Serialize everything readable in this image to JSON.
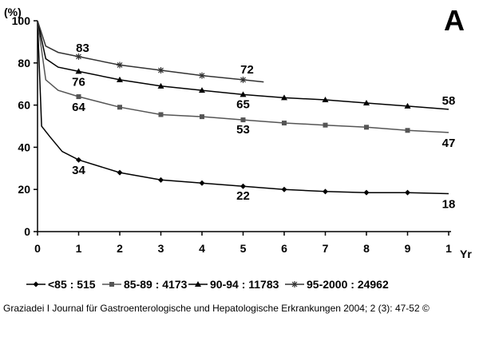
{
  "chart_data": {
    "type": "line",
    "panel_label": "A",
    "y_unit_label": "(%)",
    "x_unit_label": "Yr",
    "ylim": [
      0,
      100
    ],
    "yticks": [
      0,
      20,
      40,
      60,
      80,
      100
    ],
    "x_tick_labels": [
      "0",
      "1",
      "2",
      "3",
      "4",
      "5",
      "6",
      "7",
      "8",
      "9",
      "1"
    ],
    "grid": false,
    "legend_position": "bottom",
    "series": [
      {
        "name": "<85 : 515",
        "color": "#000000",
        "marker": "diamond",
        "x": [
          0,
          0.1,
          0.3,
          0.6,
          1,
          2,
          3,
          4,
          5,
          6,
          7,
          8,
          9,
          10
        ],
        "y": [
          100,
          50,
          45,
          38,
          34,
          28,
          24.5,
          23,
          21.5,
          20,
          19,
          18.5,
          18.5,
          18
        ],
        "data_labels": [
          {
            "x": 1,
            "y": 34,
            "text": "34"
          },
          {
            "x": 5,
            "y": 22,
            "text": "22"
          },
          {
            "x": 10,
            "y": 18,
            "text": "18"
          }
        ]
      },
      {
        "name": "85-89 : 4173",
        "color": "#555555",
        "marker": "square",
        "x": [
          0,
          0.2,
          0.5,
          1,
          2,
          3,
          4,
          5,
          6,
          7,
          8,
          9,
          10
        ],
        "y": [
          100,
          72,
          67,
          64,
          59,
          55.5,
          54.5,
          53,
          51.5,
          50.5,
          49.5,
          48,
          47
        ],
        "data_labels": [
          {
            "x": 1,
            "y": 64,
            "text": "64"
          },
          {
            "x": 5,
            "y": 53,
            "text": "53"
          },
          {
            "x": 10,
            "y": 47,
            "text": "47"
          }
        ]
      },
      {
        "name": "90-94 : 11783",
        "color": "#000000",
        "marker": "triangle",
        "x": [
          0,
          0.2,
          0.5,
          1,
          2,
          3,
          4,
          5,
          6,
          7,
          8,
          9,
          10
        ],
        "y": [
          100,
          82,
          78,
          76,
          72,
          69,
          67,
          65,
          63.5,
          62.5,
          61,
          59.5,
          58
        ],
        "data_labels": [
          {
            "x": 1,
            "y": 76,
            "text": "76"
          },
          {
            "x": 5,
            "y": 65,
            "text": "65"
          },
          {
            "x": 10,
            "y": 58,
            "text": "58"
          }
        ]
      },
      {
        "name": "95-2000 : 24962",
        "color": "#333333",
        "marker": "star",
        "x": [
          0,
          0.2,
          0.5,
          1,
          2,
          3,
          4,
          5,
          5.5
        ],
        "y": [
          100,
          88,
          85,
          83,
          79,
          76.5,
          74,
          72,
          71
        ],
        "data_labels": [
          {
            "x": 1,
            "y": 83,
            "text": "83"
          },
          {
            "x": 5,
            "y": 72,
            "text": "72"
          }
        ]
      }
    ]
  },
  "caption": "Graziadei I Journal für Gastroenterologische und Hepatologische Erkrankungen 2004; 2 (3): 47-52 ©"
}
